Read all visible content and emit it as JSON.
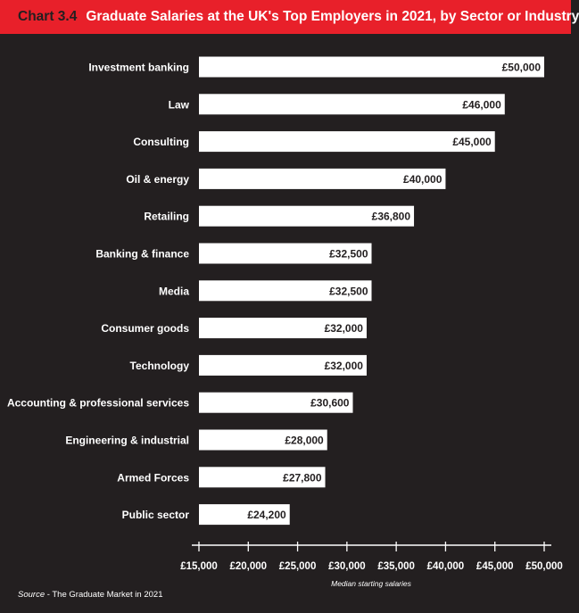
{
  "header": {
    "chart_number": "Chart 3.4",
    "title": "Graduate Salaries at the UK's Top Employers in 2021, by Sector or Industry"
  },
  "source": {
    "prefix": "Source",
    "text": " - The Graduate Market in 2021"
  },
  "colors": {
    "background": "#231f20",
    "header": "#e8202a",
    "bar": "#ffffff",
    "bar_text": "#231f20",
    "text": "#ffffff"
  },
  "chart_data": {
    "type": "bar",
    "orientation": "horizontal",
    "title": "Graduate Salaries at the UK's Top Employers in 2021, by Sector or Industry",
    "xlabel": "Median starting salaries",
    "ylabel": "",
    "xlim": [
      15000,
      50000
    ],
    "xticks": [
      15000,
      20000,
      25000,
      30000,
      35000,
      40000,
      45000,
      50000
    ],
    "xtick_labels": [
      "£15,000",
      "£20,000",
      "£25,000",
      "£30,000",
      "£35,000",
      "£40,000",
      "£45,000",
      "£50,000"
    ],
    "grid": false,
    "categories": [
      "Investment banking",
      "Law",
      "Consulting",
      "Oil & energy",
      "Retailing",
      "Banking & finance",
      "Media",
      "Consumer goods",
      "Technology",
      "Accounting & professional services",
      "Engineering & industrial",
      "Armed Forces",
      "Public sector"
    ],
    "values": [
      50000,
      46000,
      45000,
      40000,
      36800,
      32500,
      32500,
      32000,
      32000,
      30600,
      28000,
      27800,
      24200
    ],
    "value_labels": [
      "£50,000",
      "£46,000",
      "£45,000",
      "£40,000",
      "£36,800",
      "£32,500",
      "£32,500",
      "£32,000",
      "£32,000",
      "£30,600",
      "£28,000",
      "£27,800",
      "£24,200"
    ]
  }
}
